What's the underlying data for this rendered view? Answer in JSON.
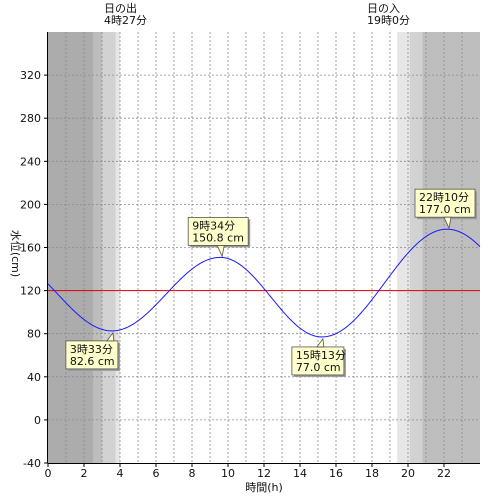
{
  "chart_data": {
    "type": "line",
    "xlabel": "時間(h)",
    "ylabel": "水位(cm)",
    "xlim": [
      0,
      24
    ],
    "ylim": [
      -40,
      360
    ],
    "x_ticks": [
      0,
      2,
      4,
      6,
      8,
      10,
      12,
      14,
      16,
      18,
      20,
      22
    ],
    "y_ticks": [
      -40,
      0,
      40,
      80,
      120,
      160,
      200,
      240,
      280,
      320
    ],
    "reference_line": {
      "value": 120,
      "color": "#e00000"
    },
    "line_color": "#1a1aff",
    "sunrise": {
      "label": "日の出",
      "time": "4時27分"
    },
    "sunset": {
      "label": "日の入",
      "time": "19時0分"
    },
    "tide_points": [
      {
        "t": 3.55,
        "level": 82.6,
        "time_label": "3時33分",
        "level_label": "82.6 cm",
        "kind": "low"
      },
      {
        "t": 9.5667,
        "level": 150.8,
        "time_label": "9時34分",
        "level_label": "150.8 cm",
        "kind": "high"
      },
      {
        "t": 15.2167,
        "level": 77.0,
        "time_label": "15時13分",
        "level_label": "77.0 cm",
        "kind": "low"
      },
      {
        "t": 22.1667,
        "level": 177.0,
        "time_label": "22時10分",
        "level_label": "177.0 cm",
        "kind": "high"
      }
    ]
  }
}
